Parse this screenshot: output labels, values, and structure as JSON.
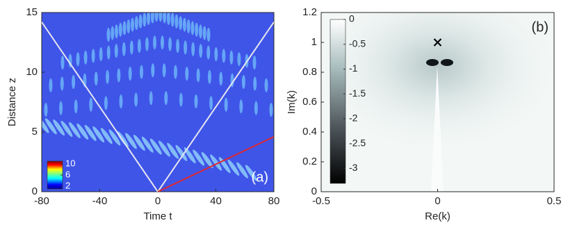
{
  "chart_data": [
    {
      "type": "heatmap",
      "xlabel": "Time t",
      "ylabel": "Distance z",
      "annotation": "(a)",
      "xlim": [
        -80,
        80
      ],
      "xticks": [
        -80,
        -40,
        0,
        40,
        80
      ],
      "ylim": [
        0,
        15
      ],
      "yticks": [
        0,
        5,
        10,
        15
      ],
      "clim": [
        1,
        11
      ],
      "cticks": [
        2,
        6,
        10
      ],
      "colormap": "jet",
      "series": [
        {
          "color": "#e6e6f0",
          "x": [
            -80,
            0
          ],
          "values": [
            14.2,
            0
          ]
        },
        {
          "color": "#e6e6f0",
          "x": [
            0,
            80
          ],
          "values": [
            0,
            14.2
          ]
        },
        {
          "color": "#e0282e",
          "x": [
            0,
            80
          ],
          "values": [
            0,
            4.6
          ]
        }
      ]
    },
    {
      "type": "heatmap",
      "xlabel": "Re(k)",
      "ylabel": "Im(k)",
      "annotation": "(b)",
      "xlim": [
        -0.5,
        0.5
      ],
      "xticks": [
        -0.5,
        0,
        0.5
      ],
      "ylim": [
        0,
        1.2
      ],
      "yticks": [
        0,
        0.2,
        0.4,
        0.6,
        0.8,
        1,
        1.2
      ],
      "clim": [
        -3.3,
        0
      ],
      "cticks": [
        0,
        -0.5,
        -1,
        -1.5,
        -2,
        -2.5,
        -3
      ],
      "colormap": "bone",
      "series": [
        {
          "color": "#000000",
          "marker": "x",
          "x": [
            0
          ],
          "values": [
            1
          ]
        }
      ]
    }
  ]
}
